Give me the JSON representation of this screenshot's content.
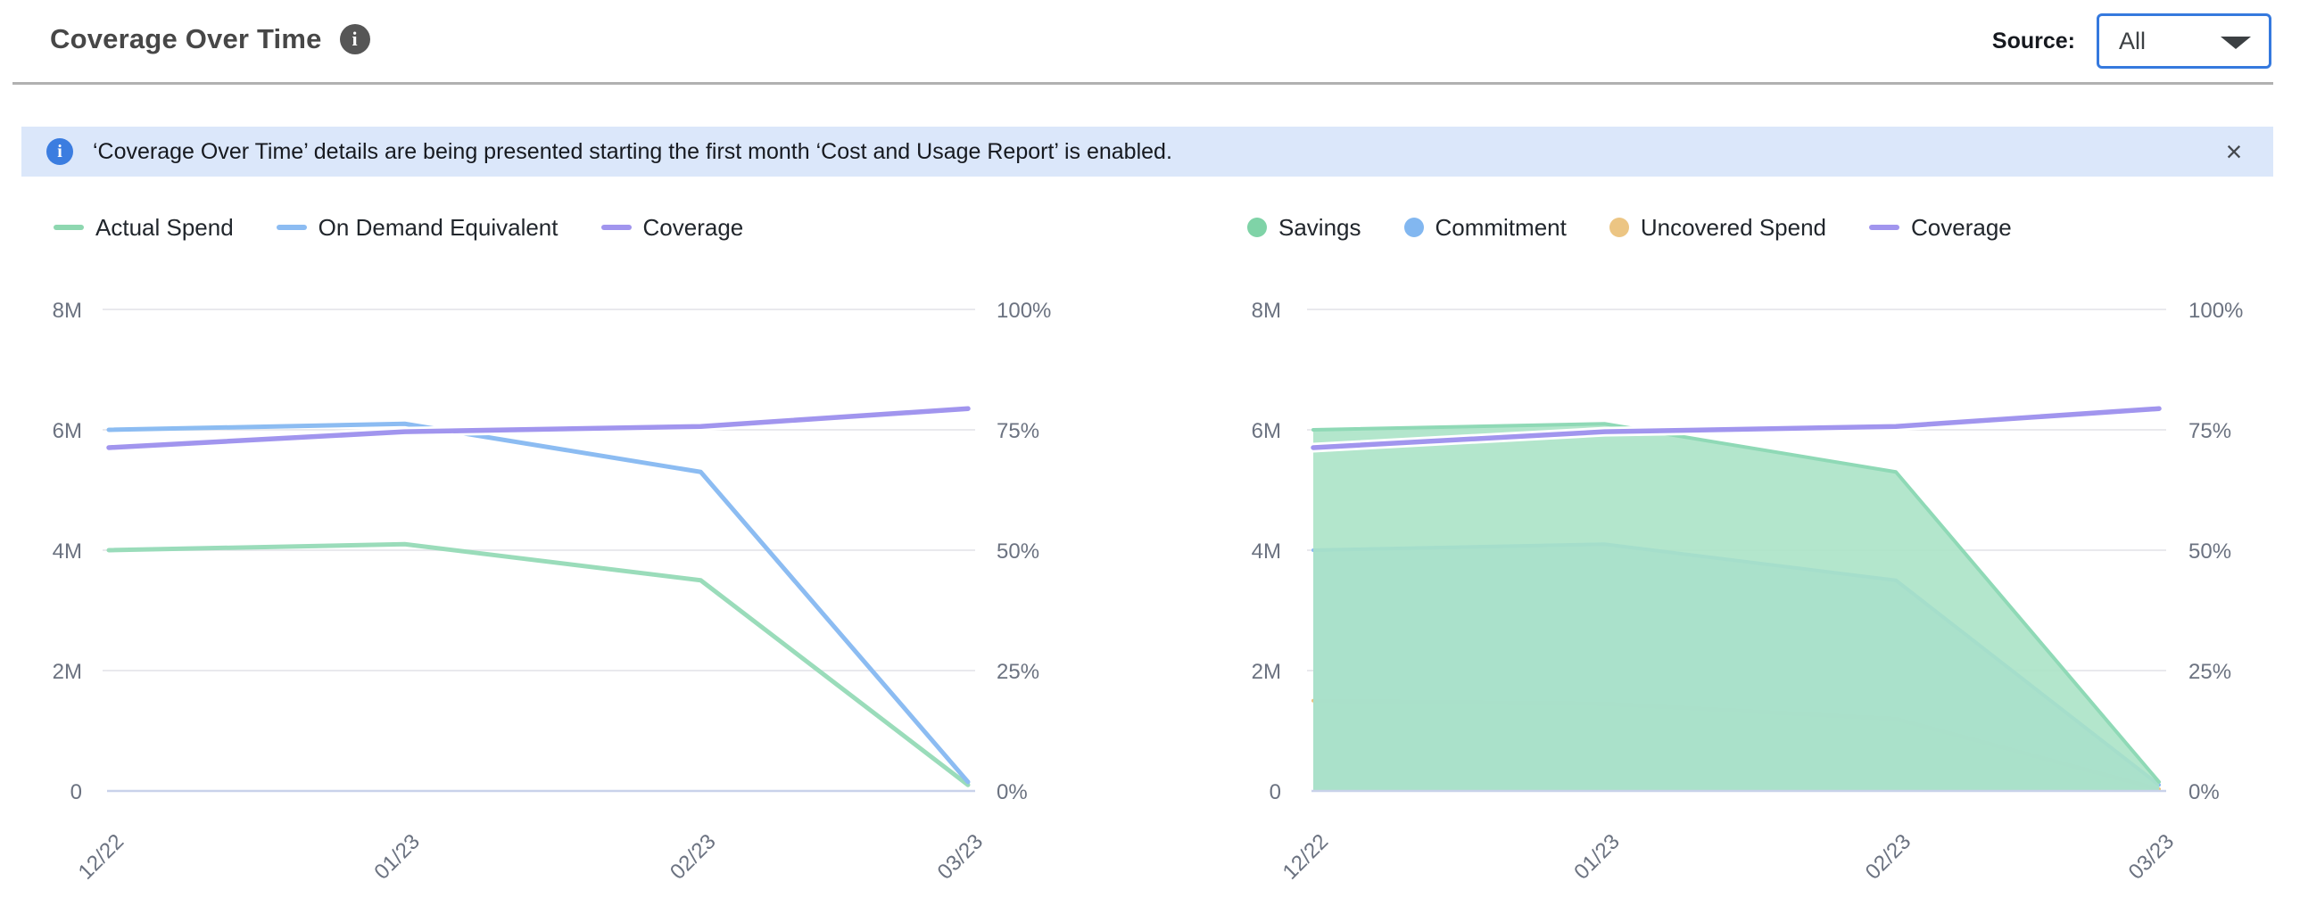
{
  "header": {
    "title": "Coverage Over Time",
    "source_label": "Source:",
    "source_value": "All"
  },
  "icons": {
    "title_info": "i",
    "banner_info": "i",
    "close": "×",
    "dropdown_caret": "caret-down"
  },
  "banner": {
    "text": "‘Coverage Over Time’ details are being presented starting the first month ‘Cost and Usage Report’ is enabled."
  },
  "colors": {
    "accent_blue": "#3579de",
    "banner_bg": "#dbe7fa",
    "grid": "#e9e9ed",
    "axis_baseline": "#c9d2ea",
    "axis_text": "#6b7280"
  },
  "chart_data": [
    {
      "type": "line",
      "title": "Spend vs On Demand Equivalent with Coverage",
      "categories": [
        "12/22",
        "01/23",
        "02/23",
        "03/23"
      ],
      "x_days": [
        0,
        31,
        62,
        90
      ],
      "y_left": {
        "ticks": [
          "8M",
          "6M",
          "4M",
          "2M",
          "0"
        ],
        "max_millions": 8,
        "min": 0
      },
      "y_right": {
        "ticks": [
          "100%",
          "75%",
          "50%",
          "25%",
          "0%"
        ],
        "max_percent": 100,
        "min": 0
      },
      "grid": true,
      "legend_position": "top",
      "series": [
        {
          "name": "Actual Spend",
          "axis": "left",
          "unit": "millions",
          "values": [
            4.0,
            4.1,
            3.5,
            0.1
          ],
          "color": "#9adcba",
          "swatch": "line",
          "swatch_color": "#8ed7b0"
        },
        {
          "name": "On Demand Equivalent",
          "axis": "left",
          "unit": "millions",
          "values": [
            6.0,
            6.1,
            5.3,
            0.15
          ],
          "color": "#8cbcf2",
          "swatch": "line",
          "swatch_color": "#8cbcf2"
        },
        {
          "name": "Coverage",
          "axis": "right",
          "unit": "percent",
          "values": [
            71.3,
            74.6,
            75.7,
            79.4
          ],
          "color": "#a195ee",
          "swatch": "line",
          "swatch_color": "#a195ee"
        }
      ]
    },
    {
      "type": "area",
      "title": "Savings, Commitment and Uncovered Spend with Coverage",
      "categories": [
        "12/22",
        "01/23",
        "02/23",
        "03/23"
      ],
      "x_days": [
        0,
        31,
        62,
        90
      ],
      "y_left": {
        "ticks": [
          "8M",
          "6M",
          "4M",
          "2M",
          "0"
        ],
        "max_millions": 8,
        "min": 0
      },
      "y_right": {
        "ticks": [
          "100%",
          "75%",
          "50%",
          "25%",
          "0%"
        ],
        "max_percent": 100,
        "min": 0
      },
      "grid": true,
      "legend_position": "top",
      "stacked": true,
      "series": [
        {
          "name": "Uncovered Spend",
          "axis": "left",
          "unit": "millions",
          "stack": true,
          "values": [
            1.5,
            1.45,
            1.2,
            0.03
          ],
          "fill": "#f3dca6",
          "stroke": "#ecc480",
          "swatch": "dot",
          "swatch_color": "#ecc583"
        },
        {
          "name": "Commitment",
          "axis": "left",
          "unit": "millions",
          "stack": true,
          "values": [
            2.5,
            2.65,
            2.3,
            0.07
          ],
          "fill": "#a8cdf6",
          "stroke": "#89b9f2",
          "swatch": "dot",
          "swatch_color": "#82b7f0"
        },
        {
          "name": "Savings",
          "axis": "left",
          "unit": "millions",
          "stack": true,
          "values": [
            2.0,
            2.0,
            1.8,
            0.05
          ],
          "fill": "#a9e3c5",
          "stroke": "#8fd9b6",
          "swatch": "dot",
          "swatch_color": "#7fd3a7"
        },
        {
          "name": "Coverage",
          "axis": "right",
          "unit": "percent",
          "values": [
            71.3,
            74.6,
            75.7,
            79.4
          ],
          "color": "#a195ee",
          "swatch": "line",
          "swatch_color": "#a195ee"
        }
      ],
      "legend_order": [
        "Savings",
        "Commitment",
        "Uncovered Spend",
        "Coverage"
      ]
    }
  ]
}
